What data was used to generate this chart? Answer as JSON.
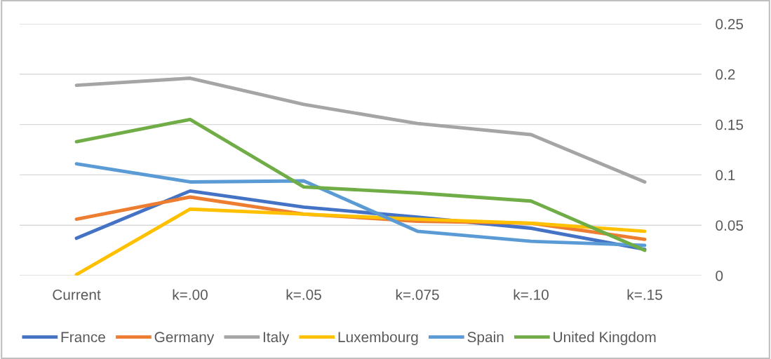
{
  "chart_data": {
    "type": "line",
    "categories": [
      "Current",
      "k=.00",
      "k=.05",
      "k=.075",
      "k=.10",
      "k=.15"
    ],
    "series": [
      {
        "name": "France",
        "color": "#4472c4",
        "values": [
          0.037,
          0.084,
          0.068,
          0.058,
          0.047,
          0.026
        ]
      },
      {
        "name": "Germany",
        "color": "#ed7d31",
        "values": [
          0.056,
          0.078,
          0.061,
          0.054,
          0.052,
          0.036
        ]
      },
      {
        "name": "Italy",
        "color": "#a5a5a5",
        "values": [
          0.189,
          0.196,
          0.17,
          0.151,
          0.14,
          0.093
        ]
      },
      {
        "name": "Luxembourg",
        "color": "#ffc000",
        "values": [
          0.001,
          0.066,
          0.061,
          0.056,
          0.052,
          0.044
        ]
      },
      {
        "name": "Spain",
        "color": "#5b9bd5",
        "values": [
          0.111,
          0.093,
          0.094,
          0.044,
          0.034,
          0.03
        ]
      },
      {
        "name": "United Kingdom",
        "color": "#70ad47",
        "values": [
          0.133,
          0.155,
          0.088,
          0.082,
          0.074,
          0.025
        ]
      }
    ],
    "ylim": [
      0,
      0.25
    ],
    "yticks": [
      0,
      0.05,
      0.1,
      0.15,
      0.2,
      0.25
    ],
    "grid": "y",
    "legend": "bottom",
    "marker": "none",
    "line_style": "solid"
  }
}
